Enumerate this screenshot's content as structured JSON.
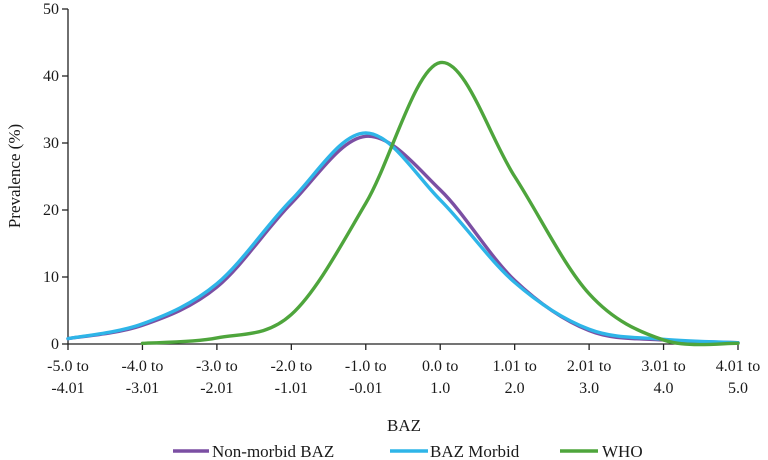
{
  "chart_data": {
    "type": "line",
    "xlabel": "BAZ",
    "ylabel": "Prevalence (%)",
    "ylim": [
      0,
      50
    ],
    "yticks": [
      0,
      10,
      20,
      30,
      40,
      50
    ],
    "grid": false,
    "legend_position": "bottom",
    "categories": [
      [
        "-5.0 to",
        "-4.01"
      ],
      [
        "-4.0 to",
        "-3.01"
      ],
      [
        "-3.0 to",
        "-2.01"
      ],
      [
        "-2.0 to",
        "-1.01"
      ],
      [
        "-1.0 to",
        "-0.01"
      ],
      [
        "0.0 to",
        "1.0"
      ],
      [
        "1.01 to",
        "2.0"
      ],
      [
        "2.01 to",
        "3.0"
      ],
      [
        "3.01 to",
        "4.0"
      ],
      [
        "4.01 to",
        "5.0"
      ]
    ],
    "series": [
      {
        "name": "Non-morbid BAZ",
        "color": "#7b4fa3",
        "x": [
          0,
          1,
          2,
          3,
          4,
          5,
          6,
          7,
          8,
          9
        ],
        "values": [
          0.8,
          2.8,
          8.5,
          21.0,
          31.0,
          23.0,
          9.5,
          2.0,
          0.6,
          0.2
        ]
      },
      {
        "name": "BAZ Morbid",
        "color": "#2eb5e8",
        "x": [
          0,
          1,
          2,
          3,
          4,
          5,
          6,
          7,
          8,
          9
        ],
        "values": [
          0.8,
          3.0,
          9.0,
          21.5,
          31.5,
          21.5,
          9.2,
          2.2,
          0.7,
          0.2
        ]
      },
      {
        "name": "WHO",
        "color": "#4ea53c",
        "x": [
          1,
          2,
          3,
          4,
          5,
          6,
          7,
          8,
          9
        ],
        "values": [
          0.1,
          0.9,
          4.4,
          21.0,
          42.0,
          25.0,
          7.5,
          0.6,
          0.1
        ]
      }
    ]
  }
}
